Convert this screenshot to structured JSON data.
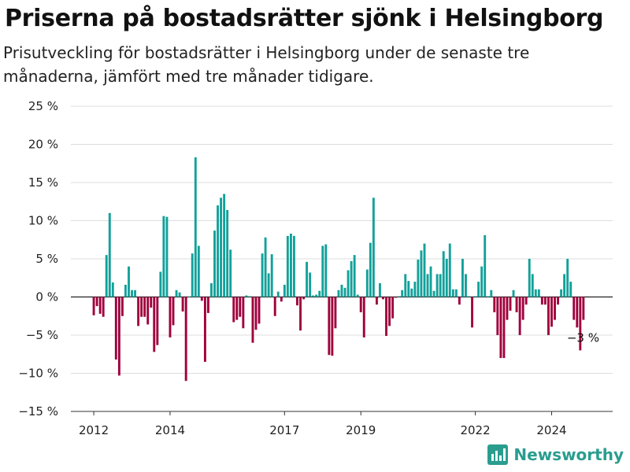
{
  "title": "Priserna på bostadsrätter sjönk i Helsingborg",
  "subtitle": "Prisutveckling för bostadsrätter i Helsingborg under de senaste tre månaderna, jämfört med tre månader tidigare.",
  "brand": {
    "name": "Newsworthy",
    "icon": "newsworthy-logo-icon"
  },
  "colors": {
    "positive": "#12a19a",
    "negative": "#a0003c",
    "grid": "#dddddd"
  },
  "chart_data": {
    "type": "bar",
    "title": "Priserna på bostadsrätter sjönk i Helsingborg",
    "xlabel": "",
    "ylabel": "",
    "ylim": [
      -15,
      25
    ],
    "yticks": [
      -15,
      -10,
      -5,
      0,
      5,
      10,
      15,
      20,
      25
    ],
    "ytick_labels": [
      "−15 %",
      "−10 %",
      "−5 %",
      "0 %",
      "5 %",
      "10 %",
      "15 %",
      "20 %",
      "25 %"
    ],
    "xticks": [
      {
        "label": "2012",
        "x": 2012.0
      },
      {
        "label": "2014",
        "x": 2014.0
      },
      {
        "label": "2017",
        "x": 2017.0
      },
      {
        "label": "2019",
        "x": 2019.0
      },
      {
        "label": "2022",
        "x": 2022.0
      },
      {
        "label": "2024",
        "x": 2024.0
      }
    ],
    "xlim": [
      2011.4,
      2025.6
    ],
    "grid": true,
    "annotation": {
      "text": "−3 %",
      "x": 2024.7,
      "y": -3
    },
    "x": [
      2012.0,
      2012.083,
      2012.167,
      2012.25,
      2012.333,
      2012.417,
      2012.5,
      2012.583,
      2012.667,
      2012.75,
      2012.833,
      2012.917,
      2013.0,
      2013.083,
      2013.167,
      2013.25,
      2013.333,
      2013.417,
      2013.5,
      2013.583,
      2013.667,
      2013.75,
      2013.833,
      2013.917,
      2014.0,
      2014.083,
      2014.167,
      2014.25,
      2014.333,
      2014.417,
      2014.5,
      2014.583,
      2014.667,
      2014.75,
      2014.833,
      2014.917,
      2015.0,
      2015.083,
      2015.167,
      2015.25,
      2015.333,
      2015.417,
      2015.5,
      2015.583,
      2015.667,
      2015.75,
      2015.833,
      2015.917,
      2016.0,
      2016.083,
      2016.167,
      2016.25,
      2016.333,
      2016.417,
      2016.5,
      2016.583,
      2016.667,
      2016.75,
      2016.833,
      2016.917,
      2017.0,
      2017.083,
      2017.167,
      2017.25,
      2017.333,
      2017.417,
      2017.5,
      2017.583,
      2017.667,
      2017.75,
      2017.833,
      2017.917,
      2018.0,
      2018.083,
      2018.167,
      2018.25,
      2018.333,
      2018.417,
      2018.5,
      2018.583,
      2018.667,
      2018.75,
      2018.833,
      2018.917,
      2019.0,
      2019.083,
      2019.167,
      2019.25,
      2019.333,
      2019.417,
      2019.5,
      2019.583,
      2019.667,
      2019.75,
      2019.833,
      2019.917,
      2020.0,
      2020.083,
      2020.167,
      2020.25,
      2020.333,
      2020.417,
      2020.5,
      2020.583,
      2020.667,
      2020.75,
      2020.833,
      2020.917,
      2021.0,
      2021.083,
      2021.167,
      2021.25,
      2021.333,
      2021.417,
      2021.5,
      2021.583,
      2021.667,
      2021.75,
      2021.833,
      2021.917,
      2022.0,
      2022.083,
      2022.167,
      2022.25,
      2022.333,
      2022.417,
      2022.5,
      2022.583,
      2022.667,
      2022.75,
      2022.833,
      2022.917,
      2023.0,
      2023.083,
      2023.167,
      2023.25,
      2023.333,
      2023.417,
      2023.5,
      2023.583,
      2023.667,
      2023.75,
      2023.833,
      2023.917,
      2024.0,
      2024.083,
      2024.167,
      2024.25,
      2024.333,
      2024.417,
      2024.5,
      2024.583,
      2024.667,
      2024.75,
      2024.833
    ],
    "values": [
      -2.4,
      -1.2,
      -2.2,
      -2.6,
      5.5,
      11.0,
      1.9,
      -8.2,
      -10.3,
      -2.5,
      1.6,
      4.0,
      0.9,
      0.9,
      -3.8,
      -2.6,
      -2.6,
      -3.6,
      -1.4,
      -7.2,
      -6.3,
      3.3,
      10.6,
      10.5,
      -5.3,
      -3.7,
      0.9,
      0.6,
      -1.9,
      -11.0,
      0.0,
      5.7,
      18.3,
      6.7,
      -0.5,
      -8.5,
      -2.1,
      1.8,
      8.7,
      12.0,
      13.0,
      13.5,
      11.4,
      6.2,
      -3.3,
      -3.0,
      -2.6,
      -4.1,
      0.2,
      0.1,
      -6.0,
      -4.3,
      -3.5,
      5.7,
      7.8,
      3.1,
      5.6,
      -2.5,
      0.7,
      -0.6,
      1.6,
      8.0,
      8.3,
      8.0,
      -1.1,
      -4.4,
      -0.3,
      4.6,
      3.2,
      0.2,
      0.3,
      0.8,
      6.7,
      6.9,
      -7.6,
      -7.7,
      -4.1,
      0.9,
      1.6,
      1.2,
      3.5,
      4.7,
      5.5,
      0.3,
      -2.0,
      -5.3,
      3.6,
      7.1,
      13.0,
      -1.0,
      1.8,
      -0.3,
      -5.1,
      -3.8,
      -2.8,
      -0.1,
      0.1,
      0.9,
      3.0,
      2.1,
      1.1,
      2.0,
      4.9,
      6.1,
      7.0,
      3.0,
      4.0,
      0.8,
      3.0,
      3.0,
      6.0,
      5.0,
      7.0,
      1.0,
      1.0,
      -1.0,
      5.0,
      3.0,
      0.1,
      -4.0,
      0.1,
      2.0,
      4.0,
      8.1,
      0.1,
      0.9,
      -2.0,
      -5.0,
      -8.0,
      -8.0,
      -3.0,
      -1.8,
      0.9,
      -2.0,
      -5.0,
      -3.0,
      -1.0,
      5.0,
      3.0,
      1.0,
      1.0,
      -1.0,
      -1.0,
      -5.0,
      -3.9,
      -3.0,
      -1.0,
      1.0,
      3.0,
      5.0,
      2.0,
      -3.0,
      -4.0,
      -7.0,
      -3.0
    ]
  }
}
